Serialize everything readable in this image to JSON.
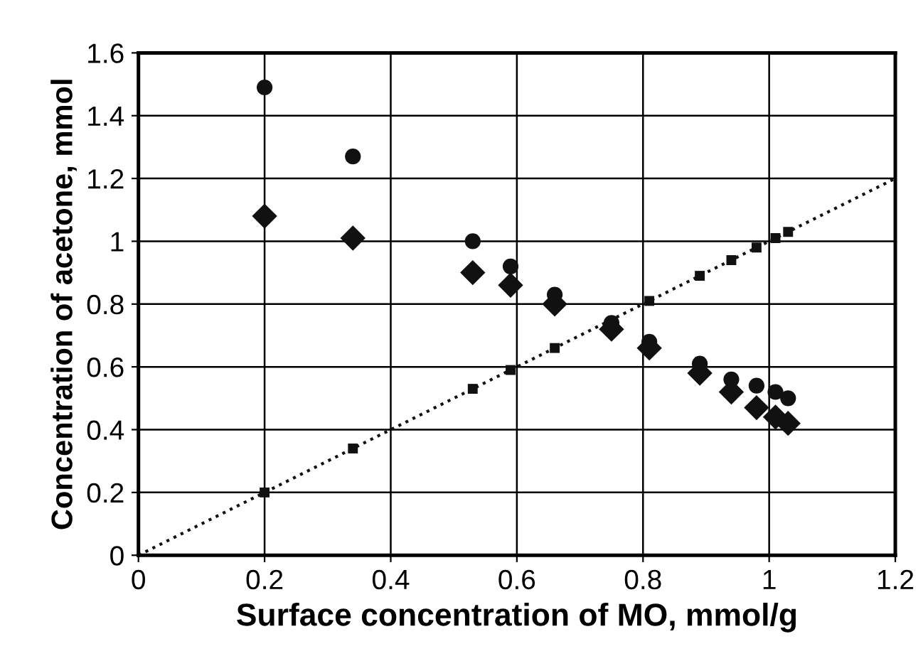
{
  "chart_data": {
    "type": "scatter",
    "xlabel": "Surface concentration of MO, mmol/g",
    "ylabel": "Concentration of acetone, mmol",
    "xlim": [
      0,
      1.2
    ],
    "ylim": [
      0,
      1.6
    ],
    "xticks": [
      0,
      0.2,
      0.4,
      0.6,
      0.8,
      1,
      1.2
    ],
    "yticks": [
      0,
      0.2,
      0.4,
      0.6,
      0.8,
      1,
      1.2,
      1.4,
      1.6
    ],
    "grid": true,
    "series": [
      {
        "marker": "circle",
        "color": "#111111",
        "x": [
          0.2,
          0.34,
          0.53,
          0.59,
          0.66,
          0.75,
          0.81,
          0.89,
          0.94,
          0.98,
          1.01,
          1.03
        ],
        "values": [
          1.49,
          1.27,
          1.0,
          0.92,
          0.83,
          0.74,
          0.68,
          0.61,
          0.56,
          0.54,
          0.52,
          0.5
        ]
      },
      {
        "marker": "diamond",
        "color": "#111111",
        "x": [
          0.2,
          0.34,
          0.53,
          0.59,
          0.66,
          0.75,
          0.81,
          0.89,
          0.94,
          0.98,
          1.01,
          1.03
        ],
        "values": [
          1.08,
          1.01,
          0.9,
          0.86,
          0.8,
          0.72,
          0.66,
          0.58,
          0.52,
          0.47,
          0.44,
          0.42
        ]
      },
      {
        "marker": "square",
        "color": "#111111",
        "x": [
          0.2,
          0.34,
          0.53,
          0.59,
          0.66,
          0.81,
          0.89,
          0.94,
          0.98,
          1.01,
          1.03
        ],
        "values": [
          0.2,
          0.34,
          0.53,
          0.59,
          0.66,
          0.81,
          0.89,
          0.94,
          0.98,
          1.01,
          1.03
        ]
      },
      {
        "type": "line",
        "line_style": "dotted",
        "marker": "none",
        "color": "#111111",
        "x": [
          0,
          1.2
        ],
        "values": [
          0,
          1.2
        ]
      }
    ]
  }
}
